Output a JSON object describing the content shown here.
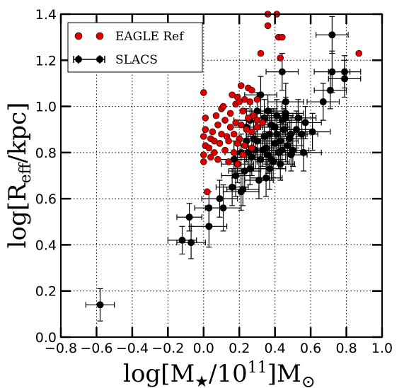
{
  "chart_data": {
    "type": "scatter",
    "title": "",
    "xlabel": {
      "base": "log[M",
      "sub1": "★",
      "mid": "/10",
      "sup": "11",
      "end": "]M",
      "sub2": "⊙"
    },
    "ylabel": {
      "base": "log[R",
      "sub": "eff",
      "end": "/kpc]"
    },
    "xlim": [
      -0.8,
      1.0
    ],
    "ylim": [
      0.0,
      1.4
    ],
    "xticks": [
      "−0.8",
      "−0.6",
      "−0.4",
      "−0.2",
      "0.0",
      "0.2",
      "0.4",
      "0.6",
      "0.8",
      "1.0"
    ],
    "yticks": [
      "0.0",
      "0.2",
      "0.4",
      "0.6",
      "0.8",
      "1.0",
      "1.2",
      "1.4"
    ],
    "grid": true,
    "legend_position": "top-left",
    "series": [
      {
        "name": "EAGLE Ref",
        "color": "#dd0000",
        "points": [
          [
            0.36,
            1.4
          ],
          [
            0.41,
            1.4
          ],
          [
            0.36,
            1.35
          ],
          [
            0.42,
            1.3
          ],
          [
            0.44,
            1.3
          ],
          [
            0.32,
            1.23
          ],
          [
            0.43,
            1.21
          ],
          [
            0.87,
            1.23
          ],
          [
            0.0,
            1.06
          ],
          [
            0.16,
            1.05
          ],
          [
            0.21,
            1.09
          ],
          [
            0.25,
            1.08
          ],
          [
            0.27,
            1.07
          ],
          [
            0.19,
            1.04
          ],
          [
            0.3,
            1.03
          ],
          [
            0.18,
            1.01
          ],
          [
            0.23,
            1.03
          ],
          [
            0.26,
            1.02
          ],
          [
            0.1,
            0.99
          ],
          [
            0.15,
            0.97
          ],
          [
            0.22,
            0.98
          ],
          [
            0.28,
            0.96
          ],
          [
            0.3,
            0.94
          ],
          [
            0.07,
            0.96
          ],
          [
            0.01,
            0.95
          ],
          [
            0.25,
            0.95
          ],
          [
            0.12,
            0.94
          ],
          [
            0.18,
            0.93
          ],
          [
            0.21,
            0.92
          ],
          [
            0.15,
            0.91
          ],
          [
            0.24,
            0.9
          ],
          [
            0.3,
            0.91
          ],
          [
            0.08,
            0.92
          ],
          [
            0.01,
            0.9
          ],
          [
            0.05,
            0.89
          ],
          [
            0.1,
            0.88
          ],
          [
            0.13,
            0.87
          ],
          [
            0.17,
            0.88
          ],
          [
            0.2,
            0.86
          ],
          [
            0.27,
            0.89
          ],
          [
            0.0,
            0.87
          ],
          [
            0.04,
            0.86
          ],
          [
            0.06,
            0.85
          ],
          [
            0.09,
            0.84
          ],
          [
            0.14,
            0.85
          ],
          [
            0.19,
            0.84
          ],
          [
            0.23,
            0.83
          ],
          [
            0.01,
            0.83
          ],
          [
            0.03,
            0.82
          ],
          [
            0.06,
            0.8
          ],
          [
            0.12,
            0.81
          ],
          [
            0.17,
            0.8
          ],
          [
            0.22,
            0.79
          ],
          [
            0.27,
            0.82
          ],
          [
            0.0,
            0.79
          ],
          [
            0.04,
            0.78
          ],
          [
            0.08,
            0.77
          ],
          [
            0.14,
            0.76
          ],
          [
            0.19,
            0.75
          ],
          [
            0.0,
            0.76
          ],
          [
            0.02,
            0.63
          ],
          [
            0.33,
            0.93
          ],
          [
            0.2,
            1.02
          ],
          [
            0.11,
            1.0
          ]
        ]
      },
      {
        "name": "SLACS",
        "color": "#000000",
        "points": [
          [
            -0.58,
            0.14,
            0.08,
            0.07
          ],
          [
            -0.12,
            0.42,
            0.08,
            0.06
          ],
          [
            -0.08,
            0.52,
            0.07,
            0.06
          ],
          [
            -0.07,
            0.41,
            0.08,
            0.07
          ],
          [
            0.03,
            0.48,
            0.1,
            0.09
          ],
          [
            0.03,
            0.56,
            0.08,
            0.07
          ],
          [
            0.09,
            0.6,
            0.1,
            0.08
          ],
          [
            0.11,
            0.56,
            0.1,
            0.1
          ],
          [
            0.16,
            0.65,
            0.09,
            0.08
          ],
          [
            0.18,
            0.7,
            0.08,
            0.09
          ],
          [
            0.21,
            0.63,
            0.1,
            0.08
          ],
          [
            0.22,
            0.64,
            0.09,
            0.07
          ],
          [
            0.17,
            0.77,
            0.1,
            0.08
          ],
          [
            0.19,
            0.75,
            0.09,
            0.08
          ],
          [
            0.23,
            0.72,
            0.09,
            0.07
          ],
          [
            0.25,
            0.8,
            0.09,
            0.08
          ],
          [
            0.24,
            0.85,
            0.1,
            0.09
          ],
          [
            0.26,
            0.73,
            0.09,
            0.07
          ],
          [
            0.27,
            0.78,
            0.09,
            0.08
          ],
          [
            0.29,
            0.81,
            0.08,
            0.08
          ],
          [
            0.3,
            0.85,
            0.1,
            0.08
          ],
          [
            0.32,
            0.77,
            0.09,
            0.09
          ],
          [
            0.33,
            0.81,
            0.08,
            0.07
          ],
          [
            0.34,
            0.87,
            0.1,
            0.09
          ],
          [
            0.35,
            0.82,
            0.08,
            0.07
          ],
          [
            0.35,
            0.69,
            0.09,
            0.08
          ],
          [
            0.36,
            0.79,
            0.1,
            0.08
          ],
          [
            0.37,
            0.88,
            0.09,
            0.07
          ],
          [
            0.38,
            0.77,
            0.08,
            0.09
          ],
          [
            0.39,
            0.76,
            0.09,
            0.07
          ],
          [
            0.4,
            0.84,
            0.1,
            0.08
          ],
          [
            0.41,
            0.88,
            0.08,
            0.09
          ],
          [
            0.42,
            0.8,
            0.09,
            0.07
          ],
          [
            0.43,
            0.85,
            0.1,
            0.08
          ],
          [
            0.43,
            0.75,
            0.08,
            0.07
          ],
          [
            0.44,
            0.94,
            0.09,
            0.08
          ],
          [
            0.45,
            0.9,
            0.08,
            0.09
          ],
          [
            0.46,
            0.95,
            0.09,
            0.08
          ],
          [
            0.46,
            0.97,
            0.1,
            0.07
          ],
          [
            0.47,
            0.83,
            0.09,
            0.08
          ],
          [
            0.48,
            0.86,
            0.08,
            0.07
          ],
          [
            0.49,
            0.88,
            0.09,
            0.08
          ],
          [
            0.5,
            0.81,
            0.09,
            0.07
          ],
          [
            0.52,
            0.9,
            0.09,
            0.08
          ],
          [
            0.53,
            0.95,
            0.1,
            0.08
          ],
          [
            0.55,
            0.88,
            0.09,
            0.07
          ],
          [
            0.56,
            0.8,
            0.1,
            0.08
          ],
          [
            0.57,
            0.93,
            0.09,
            0.07
          ],
          [
            0.61,
            0.89,
            0.1,
            0.08
          ],
          [
            0.67,
            1.02,
            0.09,
            0.08
          ],
          [
            0.71,
            1.07,
            0.09,
            0.08
          ],
          [
            0.72,
            1.31,
            0.09,
            0.08
          ],
          [
            0.72,
            1.15,
            0.1,
            0.09
          ],
          [
            0.79,
            1.15,
            0.09,
            0.07
          ],
          [
            0.79,
            1.12,
            0.09,
            0.08
          ],
          [
            0.44,
            1.15,
            0.09,
            0.08
          ],
          [
            0.34,
            0.95,
            0.1,
            0.08
          ],
          [
            0.32,
            1.05,
            0.09,
            0.08
          ],
          [
            0.26,
            0.94,
            0.09,
            0.07
          ],
          [
            0.3,
            0.98,
            0.09,
            0.08
          ],
          [
            0.41,
            0.96,
            0.09,
            0.07
          ],
          [
            0.46,
            1.02,
            0.1,
            0.08
          ],
          [
            0.36,
            0.98,
            0.09,
            0.07
          ],
          [
            0.4,
            0.91,
            0.08,
            0.08
          ],
          [
            0.24,
            0.91,
            0.09,
            0.08
          ],
          [
            0.38,
            0.92,
            0.09,
            0.07
          ],
          [
            0.44,
            0.81,
            0.08,
            0.08
          ],
          [
            0.49,
            0.79,
            0.09,
            0.07
          ],
          [
            0.21,
            0.8,
            0.09,
            0.08
          ],
          [
            0.28,
            0.86,
            0.08,
            0.08
          ],
          [
            0.37,
            0.73,
            0.09,
            0.09
          ],
          [
            0.31,
            0.68,
            0.08,
            0.08
          ]
        ]
      }
    ]
  }
}
